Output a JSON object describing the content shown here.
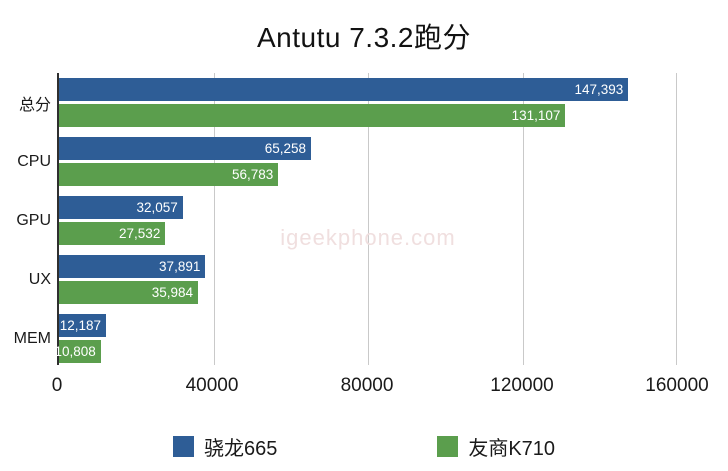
{
  "title": "Antutu 7.3.2跑分",
  "watermark": "igeekphone.com",
  "colors": {
    "series1": "#2e5d96",
    "series2": "#5b9e4d",
    "gridline": "#c9c9c9",
    "axis_line": "#2f2f2f",
    "value_text": "#ffffff",
    "watermark_text": "#f0dfdf"
  },
  "chart_data": {
    "type": "bar",
    "orientation": "horizontal",
    "title": "Antutu 7.3.2跑分",
    "categories": [
      "总分",
      "CPU",
      "GPU",
      "UX",
      "MEM"
    ],
    "series": [
      {
        "name": "骁龙665",
        "color": "#2e5d96",
        "values": [
          147393,
          65258,
          32057,
          37891,
          12187
        ],
        "value_labels": [
          "147,393",
          "65,258",
          "32,057",
          "37,891",
          "12,187"
        ]
      },
      {
        "name": "友商K710",
        "color": "#5b9e4d",
        "values": [
          131107,
          56783,
          27532,
          35984,
          10808
        ],
        "value_labels": [
          "131,107",
          "56,783",
          "27,532",
          "35,984",
          "10,808"
        ]
      }
    ],
    "xlim": [
      0,
      160000
    ],
    "x_ticks": [
      "0",
      "40000",
      "80000",
      "120000",
      "160000"
    ],
    "grid": true,
    "legend_position": "bottom"
  }
}
